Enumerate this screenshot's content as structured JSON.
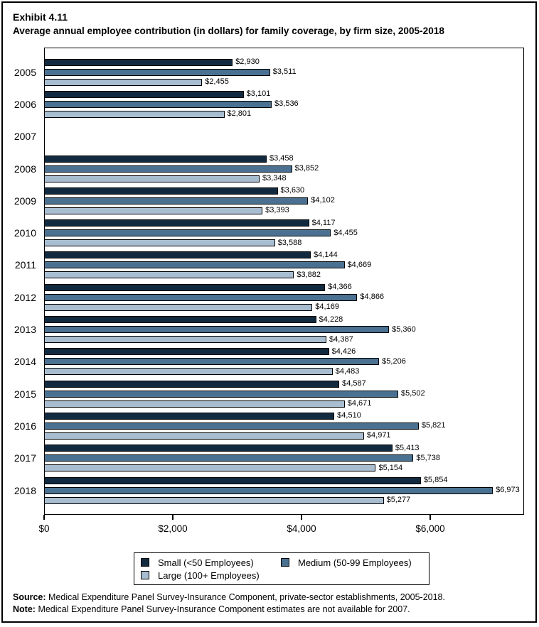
{
  "header": {
    "exhibit": "Exhibit 4.11",
    "title": "Average annual employee contribution (in dollars) for family coverage, by firm size, 2005-2018"
  },
  "chart_data": {
    "type": "bar",
    "orientation": "horizontal",
    "title": "Average annual employee contribution (in dollars) for family coverage, by firm size, 2005-2018",
    "categories": [
      "2005",
      "2006",
      "2007",
      "2008",
      "2009",
      "2010",
      "2011",
      "2012",
      "2013",
      "2014",
      "2015",
      "2016",
      "2017",
      "2018"
    ],
    "series": [
      {
        "key": "small",
        "name": "Small (<50 Employees)",
        "color": "#122A3F",
        "values": [
          2930,
          3101,
          null,
          3458,
          3630,
          4117,
          4144,
          4366,
          4228,
          4426,
          4587,
          4510,
          5413,
          5854
        ]
      },
      {
        "key": "medium",
        "name": "Medium (50-99 Employees)",
        "color": "#4A7191",
        "values": [
          3511,
          3536,
          null,
          3852,
          4102,
          4455,
          4669,
          4866,
          5360,
          5206,
          5502,
          5821,
          5738,
          6973
        ]
      },
      {
        "key": "large",
        "name": "Large (100+ Employees)",
        "color": "#A9BDD0",
        "values": [
          2455,
          2801,
          null,
          3348,
          3393,
          3588,
          3882,
          4169,
          4387,
          4483,
          4671,
          4971,
          5154,
          5277
        ]
      }
    ],
    "x_ticks": [
      "$0",
      "$2,000",
      "$4,000",
      "$6,000"
    ],
    "x_tick_values": [
      0,
      2000,
      4000,
      6000
    ],
    "xlim": [
      0,
      7458
    ],
    "grid": false,
    "legend_position": "bottom",
    "note": "No data shown for 2007"
  },
  "legend": {
    "items": [
      {
        "label": "Small (<50 Employees)",
        "color": "#122A3F"
      },
      {
        "label": "Medium (50-99 Employees)",
        "color": "#4A7191"
      },
      {
        "label": "Large (100+ Employees)",
        "color": "#A9BDD0"
      }
    ]
  },
  "footer": {
    "source_label": "Source:",
    "source_text": "Medical Expenditure Panel Survey-Insurance Component, private-sector establishments, 2005-2018.",
    "note_label": "Note:",
    "note_text": "Medical Expenditure Panel Survey-Insurance Component estimates are not available for 2007."
  }
}
